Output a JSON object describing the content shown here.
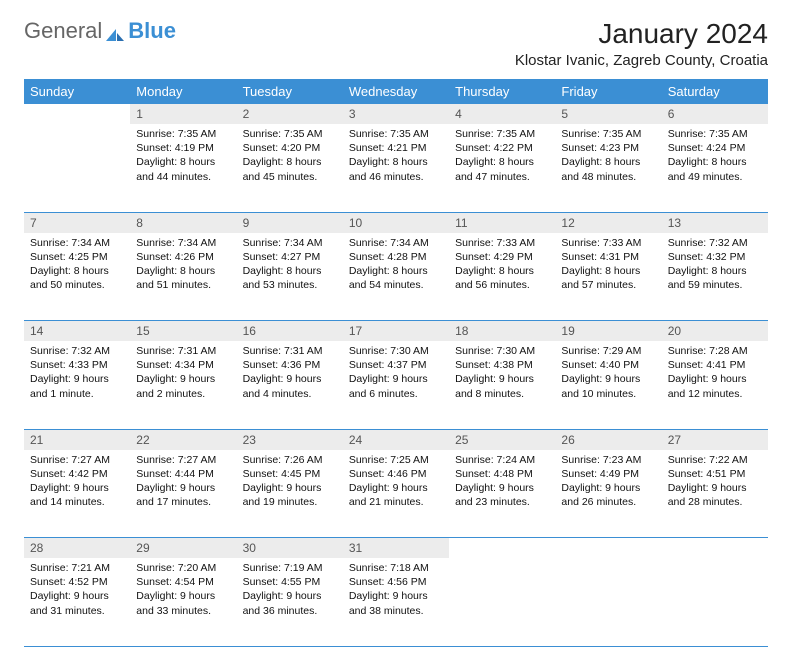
{
  "logo": {
    "part1": "General",
    "part2": "Blue"
  },
  "title": "January 2024",
  "location": "Klostar Ivanic, Zagreb County, Croatia",
  "colors": {
    "header_bg": "#3b8fd4",
    "header_text": "#ffffff",
    "daynum_bg": "#ececec",
    "row_border": "#3b8fd4",
    "text": "#111111"
  },
  "day_headers": [
    "Sunday",
    "Monday",
    "Tuesday",
    "Wednesday",
    "Thursday",
    "Friday",
    "Saturday"
  ],
  "weeks": [
    {
      "nums": [
        "",
        "1",
        "2",
        "3",
        "4",
        "5",
        "6"
      ],
      "cells": [
        "",
        "Sunrise: 7:35 AM\nSunset: 4:19 PM\nDaylight: 8 hours and 44 minutes.",
        "Sunrise: 7:35 AM\nSunset: 4:20 PM\nDaylight: 8 hours and 45 minutes.",
        "Sunrise: 7:35 AM\nSunset: 4:21 PM\nDaylight: 8 hours and 46 minutes.",
        "Sunrise: 7:35 AM\nSunset: 4:22 PM\nDaylight: 8 hours and 47 minutes.",
        "Sunrise: 7:35 AM\nSunset: 4:23 PM\nDaylight: 8 hours and 48 minutes.",
        "Sunrise: 7:35 AM\nSunset: 4:24 PM\nDaylight: 8 hours and 49 minutes."
      ]
    },
    {
      "nums": [
        "7",
        "8",
        "9",
        "10",
        "11",
        "12",
        "13"
      ],
      "cells": [
        "Sunrise: 7:34 AM\nSunset: 4:25 PM\nDaylight: 8 hours and 50 minutes.",
        "Sunrise: 7:34 AM\nSunset: 4:26 PM\nDaylight: 8 hours and 51 minutes.",
        "Sunrise: 7:34 AM\nSunset: 4:27 PM\nDaylight: 8 hours and 53 minutes.",
        "Sunrise: 7:34 AM\nSunset: 4:28 PM\nDaylight: 8 hours and 54 minutes.",
        "Sunrise: 7:33 AM\nSunset: 4:29 PM\nDaylight: 8 hours and 56 minutes.",
        "Sunrise: 7:33 AM\nSunset: 4:31 PM\nDaylight: 8 hours and 57 minutes.",
        "Sunrise: 7:32 AM\nSunset: 4:32 PM\nDaylight: 8 hours and 59 minutes."
      ]
    },
    {
      "nums": [
        "14",
        "15",
        "16",
        "17",
        "18",
        "19",
        "20"
      ],
      "cells": [
        "Sunrise: 7:32 AM\nSunset: 4:33 PM\nDaylight: 9 hours and 1 minute.",
        "Sunrise: 7:31 AM\nSunset: 4:34 PM\nDaylight: 9 hours and 2 minutes.",
        "Sunrise: 7:31 AM\nSunset: 4:36 PM\nDaylight: 9 hours and 4 minutes.",
        "Sunrise: 7:30 AM\nSunset: 4:37 PM\nDaylight: 9 hours and 6 minutes.",
        "Sunrise: 7:30 AM\nSunset: 4:38 PM\nDaylight: 9 hours and 8 minutes.",
        "Sunrise: 7:29 AM\nSunset: 4:40 PM\nDaylight: 9 hours and 10 minutes.",
        "Sunrise: 7:28 AM\nSunset: 4:41 PM\nDaylight: 9 hours and 12 minutes."
      ]
    },
    {
      "nums": [
        "21",
        "22",
        "23",
        "24",
        "25",
        "26",
        "27"
      ],
      "cells": [
        "Sunrise: 7:27 AM\nSunset: 4:42 PM\nDaylight: 9 hours and 14 minutes.",
        "Sunrise: 7:27 AM\nSunset: 4:44 PM\nDaylight: 9 hours and 17 minutes.",
        "Sunrise: 7:26 AM\nSunset: 4:45 PM\nDaylight: 9 hours and 19 minutes.",
        "Sunrise: 7:25 AM\nSunset: 4:46 PM\nDaylight: 9 hours and 21 minutes.",
        "Sunrise: 7:24 AM\nSunset: 4:48 PM\nDaylight: 9 hours and 23 minutes.",
        "Sunrise: 7:23 AM\nSunset: 4:49 PM\nDaylight: 9 hours and 26 minutes.",
        "Sunrise: 7:22 AM\nSunset: 4:51 PM\nDaylight: 9 hours and 28 minutes."
      ]
    },
    {
      "nums": [
        "28",
        "29",
        "30",
        "31",
        "",
        "",
        ""
      ],
      "cells": [
        "Sunrise: 7:21 AM\nSunset: 4:52 PM\nDaylight: 9 hours and 31 minutes.",
        "Sunrise: 7:20 AM\nSunset: 4:54 PM\nDaylight: 9 hours and 33 minutes.",
        "Sunrise: 7:19 AM\nSunset: 4:55 PM\nDaylight: 9 hours and 36 minutes.",
        "Sunrise: 7:18 AM\nSunset: 4:56 PM\nDaylight: 9 hours and 38 minutes.",
        "",
        "",
        ""
      ]
    }
  ]
}
